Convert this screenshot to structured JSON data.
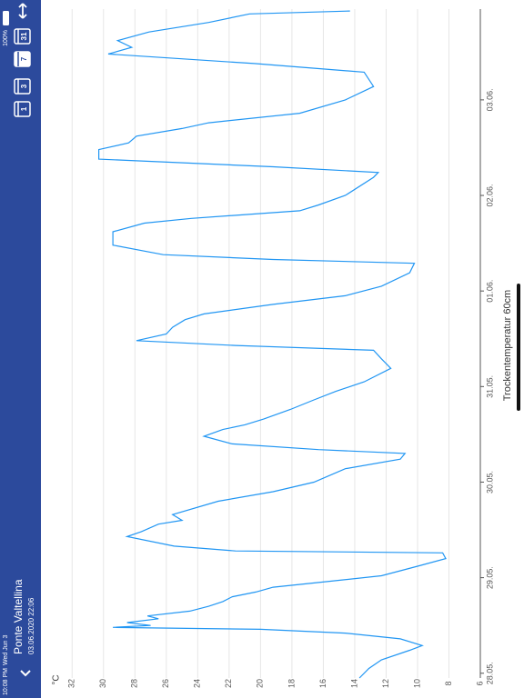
{
  "status": {
    "time": "10:08 PM",
    "date": "Wed Jun 3",
    "battery": "100%"
  },
  "header": {
    "title": "Ponte Valtellina",
    "subtitle": "03.06.2020 22:06",
    "ranges": [
      "1",
      "3",
      "7",
      "31"
    ]
  },
  "chart_data": {
    "type": "line",
    "y_label": "°C",
    "x": [
      -0.05,
      0.05,
      0.14,
      0.24,
      0.29,
      0.36,
      0.42,
      0.46,
      0.48,
      0.5,
      0.53,
      0.57,
      0.6,
      0.65,
      0.7,
      0.75,
      0.8,
      0.85,
      0.9,
      0.95,
      1.02,
      1.12,
      1.2,
      1.26,
      1.28,
      1.33,
      1.43,
      1.48,
      1.56,
      1.6,
      1.66,
      1.8,
      1.9,
      2.0,
      2.14,
      2.24,
      2.3,
      2.34,
      2.4,
      2.48,
      2.55,
      2.6,
      2.66,
      2.76,
      2.86,
      2.95,
      3.05,
      3.19,
      3.29,
      3.38,
      3.43,
      3.48,
      3.55,
      3.62,
      3.7,
      3.76,
      3.86,
      3.95,
      4.05,
      4.19,
      4.29,
      4.33,
      4.38,
      4.48,
      4.62,
      4.71,
      4.76,
      4.84,
      4.9,
      5.0,
      5.19,
      5.24,
      5.3,
      5.38,
      5.48,
      5.55,
      5.62,
      5.7,
      5.76,
      5.86,
      6.0,
      6.14,
      6.29,
      6.38,
      6.48,
      6.55,
      6.62,
      6.71,
      6.81,
      6.9,
      6.93
    ],
    "xlim": [
      -0.05,
      6.95
    ],
    "xticks": [
      {
        "value": 0,
        "label": "28.05."
      },
      {
        "value": 1,
        "label": "29.05."
      },
      {
        "value": 2,
        "label": "30.05."
      },
      {
        "value": 3,
        "label": "31.05."
      },
      {
        "value": 4,
        "label": "01.06."
      },
      {
        "value": 5,
        "label": "02.06."
      },
      {
        "value": 6,
        "label": "03.06."
      }
    ],
    "series": [
      {
        "name": "Trockentemperatur 60cm",
        "color": "#2196f3",
        "values": [
          13.7,
          13.1,
          12.3,
          10.5,
          9.7,
          11.1,
          14.6,
          20.0,
          29.4,
          27.0,
          28.5,
          26.5,
          27.2,
          24.5,
          23.3,
          22.4,
          21.8,
          20.3,
          19.2,
          16.3,
          12.3,
          10.0,
          8.2,
          8.4,
          21.6,
          25.5,
          28.5,
          27.6,
          26.5,
          25.0,
          25.6,
          22.7,
          19.2,
          16.6,
          14.6,
          11.1,
          10.8,
          16.3,
          21.8,
          23.6,
          22.4,
          21.0,
          19.8,
          18.1,
          16.6,
          15.2,
          13.4,
          11.7,
          12.3,
          12.8,
          21.6,
          27.9,
          26.0,
          25.6,
          24.8,
          23.6,
          19.2,
          14.6,
          12.3,
          10.5,
          10.2,
          19.2,
          26.2,
          29.4,
          29.4,
          27.4,
          24.4,
          17.5,
          16.3,
          14.6,
          12.8,
          12.5,
          19.2,
          30.3,
          30.3,
          28.4,
          27.9,
          25.0,
          23.3,
          17.5,
          14.6,
          12.8,
          13.4,
          20.4,
          29.7,
          28.2,
          29.1,
          27.1,
          23.3,
          20.7,
          14.3
        ]
      }
    ],
    "ylim": [
      6,
      33
    ],
    "yticks": [
      6,
      8,
      10,
      12,
      14,
      16,
      18,
      20,
      22,
      24,
      26,
      28,
      30,
      32
    ],
    "grid": true
  }
}
